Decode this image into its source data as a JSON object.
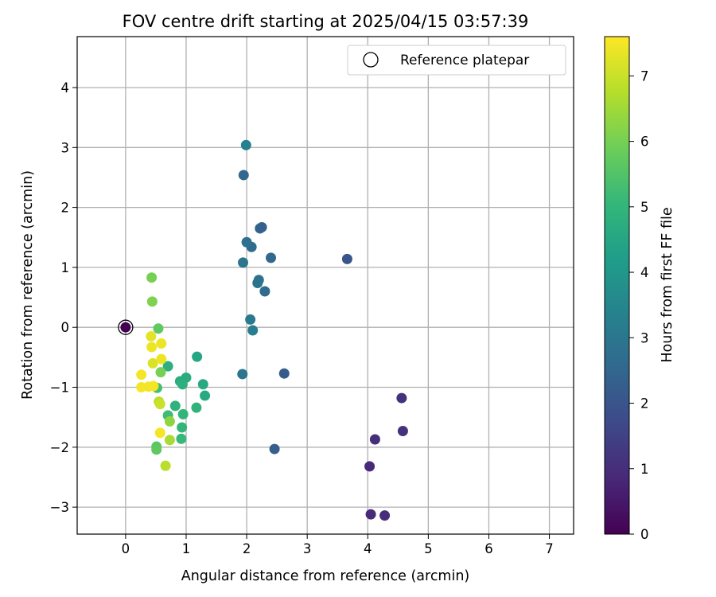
{
  "chart_data": {
    "type": "scatter",
    "title": "FOV centre drift starting at 2025/04/15 03:57:39",
    "xlabel": "Angular distance from reference (arcmin)",
    "ylabel": "Rotation from reference (arcmin)",
    "xlim": [
      -0.8,
      7.4
    ],
    "ylim": [
      -3.45,
      4.85
    ],
    "xticks": [
      "0",
      "1",
      "2",
      "3",
      "4",
      "5",
      "6",
      "7"
    ],
    "yticks": [
      "−3",
      "−2",
      "−1",
      "0",
      "1",
      "2",
      "3",
      "4"
    ],
    "grid": true,
    "legend": {
      "placement": "top-right",
      "entries": [
        "Reference platepar"
      ]
    },
    "reference_point": {
      "x": 0,
      "y": 0
    },
    "colorbar": {
      "label": "Hours from first FF file",
      "range": [
        0,
        7.6
      ],
      "ticks": [
        "0",
        "1",
        "2",
        "3",
        "4",
        "5",
        "6",
        "7"
      ],
      "colormap": "viridis",
      "colors": [
        "#440154",
        "#482878",
        "#3e4989",
        "#31688e",
        "#26828e",
        "#1f9e89",
        "#35b779",
        "#6ece58",
        "#b5de2b",
        "#fde725"
      ]
    },
    "points": [
      {
        "x": 0.0,
        "y": 0.0,
        "t": 0.0
      },
      {
        "x": 4.03,
        "y": -2.32,
        "t": 0.9
      },
      {
        "x": 4.05,
        "y": -3.12,
        "t": 0.9
      },
      {
        "x": 4.12,
        "y": -1.87,
        "t": 1.0
      },
      {
        "x": 4.28,
        "y": -3.14,
        "t": 1.0
      },
      {
        "x": 4.56,
        "y": -1.18,
        "t": 1.1
      },
      {
        "x": 4.58,
        "y": -1.73,
        "t": 1.1
      },
      {
        "x": 3.66,
        "y": 1.14,
        "t": 2.0
      },
      {
        "x": 2.62,
        "y": -0.77,
        "t": 2.2
      },
      {
        "x": 2.46,
        "y": -2.03,
        "t": 2.3
      },
      {
        "x": 2.22,
        "y": 1.65,
        "t": 2.4
      },
      {
        "x": 2.25,
        "y": 1.67,
        "t": 2.4
      },
      {
        "x": 1.95,
        "y": 2.54,
        "t": 2.5
      },
      {
        "x": 2.4,
        "y": 1.16,
        "t": 2.5
      },
      {
        "x": 2.3,
        "y": 0.6,
        "t": 2.6
      },
      {
        "x": 2.08,
        "y": 1.34,
        "t": 2.7
      },
      {
        "x": 2.0,
        "y": 1.42,
        "t": 2.8
      },
      {
        "x": 2.2,
        "y": 0.79,
        "t": 2.9
      },
      {
        "x": 2.18,
        "y": 0.74,
        "t": 2.9
      },
      {
        "x": 1.94,
        "y": 1.08,
        "t": 3.0
      },
      {
        "x": 1.93,
        "y": -0.78,
        "t": 3.0
      },
      {
        "x": 2.06,
        "y": 0.13,
        "t": 3.1
      },
      {
        "x": 2.1,
        "y": -0.05,
        "t": 3.2
      },
      {
        "x": 1.99,
        "y": 3.04,
        "t": 3.3
      },
      {
        "x": 1.18,
        "y": -0.49,
        "t": 4.5
      },
      {
        "x": 1.28,
        "y": -0.95,
        "t": 4.6
      },
      {
        "x": 1.31,
        "y": -1.14,
        "t": 4.6
      },
      {
        "x": 1.0,
        "y": -0.84,
        "t": 4.7
      },
      {
        "x": 0.9,
        "y": -0.9,
        "t": 4.7
      },
      {
        "x": 0.94,
        "y": -0.95,
        "t": 4.8
      },
      {
        "x": 0.7,
        "y": -0.65,
        "t": 4.8
      },
      {
        "x": 0.82,
        "y": -1.31,
        "t": 4.9
      },
      {
        "x": 1.17,
        "y": -1.34,
        "t": 4.9
      },
      {
        "x": 0.95,
        "y": -1.45,
        "t": 5.0
      },
      {
        "x": 0.93,
        "y": -1.67,
        "t": 5.0
      },
      {
        "x": 0.92,
        "y": -1.86,
        "t": 5.1
      },
      {
        "x": 0.7,
        "y": -1.47,
        "t": 5.2
      },
      {
        "x": 0.52,
        "y": -1.01,
        "t": 5.3
      },
      {
        "x": 0.51,
        "y": -1.99,
        "t": 5.6
      },
      {
        "x": 0.51,
        "y": -2.04,
        "t": 5.7
      },
      {
        "x": 0.54,
        "y": -0.02,
        "t": 5.7
      },
      {
        "x": 0.58,
        "y": -0.75,
        "t": 6.0
      },
      {
        "x": 0.43,
        "y": 0.83,
        "t": 6.0
      },
      {
        "x": 0.44,
        "y": 0.43,
        "t": 6.1
      },
      {
        "x": 0.73,
        "y": -1.57,
        "t": 6.3
      },
      {
        "x": 0.73,
        "y": -1.88,
        "t": 6.6
      },
      {
        "x": 0.66,
        "y": -2.31,
        "t": 6.8
      },
      {
        "x": 0.55,
        "y": -1.24,
        "t": 6.8
      },
      {
        "x": 0.57,
        "y": -1.28,
        "t": 7.0
      },
      {
        "x": 0.45,
        "y": -0.6,
        "t": 7.2
      },
      {
        "x": 0.42,
        "y": -0.15,
        "t": 7.3
      },
      {
        "x": 0.43,
        "y": -0.33,
        "t": 7.4
      },
      {
        "x": 0.59,
        "y": -0.27,
        "t": 7.4
      },
      {
        "x": 0.59,
        "y": -0.53,
        "t": 7.4
      },
      {
        "x": 0.46,
        "y": -0.98,
        "t": 7.5
      },
      {
        "x": 0.38,
        "y": -0.99,
        "t": 7.5
      },
      {
        "x": 0.26,
        "y": -1.0,
        "t": 7.5
      },
      {
        "x": 0.26,
        "y": -0.79,
        "t": 7.5
      },
      {
        "x": 0.57,
        "y": -1.76,
        "t": 7.5
      }
    ]
  }
}
